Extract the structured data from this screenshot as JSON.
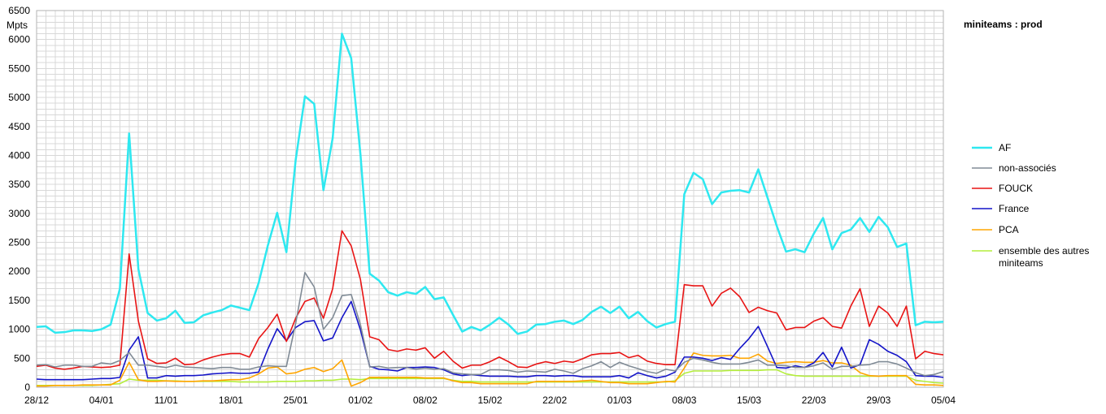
{
  "chart_data": {
    "type": "line",
    "title": "miniteams : prod",
    "ylabel": "Mpts",
    "xlabel": "",
    "ylim": [
      0,
      6500
    ],
    "y_ticks": [
      0,
      500,
      1000,
      1500,
      2000,
      2500,
      3000,
      3500,
      4000,
      4500,
      5000,
      5500,
      6000,
      6500
    ],
    "x_start": "28/12",
    "x_tick_labels": [
      "28/12",
      "04/01",
      "11/01",
      "18/01",
      "25/01",
      "01/02",
      "08/02",
      "15/02",
      "22/02",
      "01/03",
      "08/03",
      "15/03",
      "22/03",
      "29/03",
      "05/04"
    ],
    "grid": true,
    "legend_position": "right",
    "series": [
      {
        "name": "AF",
        "color": "#2ee8f0",
        "values": [
          1040,
          1050,
          940,
          950,
          980,
          980,
          970,
          1000,
          1080,
          1700,
          4380,
          2040,
          1280,
          1150,
          1190,
          1320,
          1110,
          1120,
          1240,
          1290,
          1330,
          1410,
          1370,
          1330,
          1800,
          2450,
          3010,
          2330,
          3920,
          5020,
          4890,
          3400,
          4300,
          6100,
          5680,
          4020,
          1960,
          1840,
          1640,
          1580,
          1640,
          1610,
          1730,
          1520,
          1550,
          1250,
          960,
          1040,
          980,
          1080,
          1200,
          1080,
          920,
          960,
          1080,
          1090,
          1130,
          1150,
          1090,
          1160,
          1300,
          1390,
          1280,
          1390,
          1190,
          1300,
          1140,
          1030,
          1090,
          1130,
          3330,
          3700,
          3590,
          3160,
          3360,
          3390,
          3400,
          3360,
          3760,
          3270,
          2780,
          2340,
          2380,
          2330,
          2650,
          2920,
          2380,
          2660,
          2720,
          2920,
          2680,
          2940,
          2760,
          2420,
          2480,
          1070,
          1130,
          1120,
          1130
        ]
      },
      {
        "name": "non-associés",
        "color": "#808b96",
        "values": [
          380,
          390,
          350,
          380,
          380,
          360,
          360,
          420,
          400,
          460,
          600,
          380,
          380,
          360,
          340,
          380,
          350,
          340,
          330,
          320,
          340,
          340,
          310,
          310,
          350,
          370,
          360,
          360,
          1100,
          1980,
          1730,
          1000,
          1200,
          1580,
          1600,
          1080,
          350,
          360,
          330,
          340,
          340,
          310,
          330,
          310,
          320,
          250,
          230,
          220,
          220,
          300,
          300,
          290,
          260,
          280,
          270,
          260,
          310,
          280,
          240,
          320,
          370,
          440,
          340,
          430,
          370,
          320,
          270,
          240,
          310,
          280,
          430,
          500,
          470,
          430,
          400,
          400,
          400,
          430,
          470,
          380,
          380,
          370,
          340,
          340,
          370,
          420,
          310,
          360,
          360,
          380,
          390,
          440,
          440,
          400,
          330,
          250,
          200,
          220,
          270
        ]
      },
      {
        "name": "FOUCK",
        "color": "#e81414",
        "values": [
          360,
          380,
          330,
          310,
          330,
          360,
          350,
          340,
          350,
          380,
          2300,
          1140,
          490,
          410,
          420,
          500,
          390,
          400,
          470,
          520,
          560,
          580,
          580,
          520,
          840,
          1030,
          1260,
          790,
          1190,
          1480,
          1540,
          1190,
          1700,
          2700,
          2440,
          1860,
          870,
          820,
          650,
          620,
          660,
          640,
          680,
          500,
          620,
          450,
          330,
          380,
          380,
          440,
          520,
          440,
          350,
          340,
          400,
          440,
          410,
          450,
          430,
          490,
          560,
          580,
          580,
          600,
          510,
          550,
          450,
          410,
          390,
          390,
          1770,
          1750,
          1750,
          1400,
          1620,
          1710,
          1560,
          1290,
          1380,
          1320,
          1280,
          990,
          1030,
          1030,
          1140,
          1200,
          1050,
          1020,
          1400,
          1700,
          1050,
          1400,
          1280,
          1050,
          1400,
          490,
          620,
          580,
          560
        ]
      },
      {
        "name": "France",
        "color": "#1414c8",
        "values": [
          140,
          130,
          130,
          130,
          130,
          130,
          140,
          150,
          150,
          170,
          640,
          870,
          160,
          160,
          200,
          190,
          200,
          200,
          210,
          230,
          240,
          250,
          240,
          240,
          260,
          660,
          1010,
          800,
          1030,
          1130,
          1150,
          800,
          850,
          1200,
          1480,
          990,
          360,
          310,
          300,
          280,
          340,
          340,
          350,
          340,
          300,
          230,
          200,
          220,
          200,
          190,
          190,
          190,
          180,
          180,
          200,
          200,
          190,
          200,
          200,
          180,
          180,
          180,
          180,
          200,
          160,
          250,
          200,
          160,
          190,
          260,
          520,
          520,
          500,
          460,
          510,
          480,
          670,
          840,
          1050,
          700,
          340,
          330,
          370,
          340,
          420,
          600,
          350,
          690,
          330,
          390,
          820,
          740,
          620,
          550,
          440,
          200,
          190,
          190,
          170
        ]
      },
      {
        "name": "PCA",
        "color": "#ffa500",
        "values": [
          20,
          20,
          30,
          30,
          30,
          40,
          40,
          40,
          40,
          120,
          430,
          130,
          100,
          100,
          110,
          100,
          100,
          100,
          110,
          110,
          120,
          130,
          130,
          160,
          230,
          330,
          350,
          230,
          250,
          310,
          340,
          270,
          320,
          470,
          20,
          80,
          170,
          170,
          170,
          170,
          170,
          170,
          160,
          160,
          160,
          110,
          80,
          80,
          60,
          60,
          60,
          60,
          60,
          60,
          100,
          100,
          100,
          100,
          100,
          110,
          120,
          100,
          80,
          80,
          60,
          60,
          60,
          80,
          100,
          90,
          330,
          590,
          550,
          540,
          540,
          550,
          500,
          500,
          570,
          450,
          410,
          430,
          440,
          430,
          430,
          460,
          420,
          420,
          380,
          250,
          200,
          190,
          200,
          200,
          200,
          50,
          40,
          40,
          30
        ]
      },
      {
        "name": "ensemble des autres miniteams",
        "color": "#b4ee3c",
        "values": [
          30,
          30,
          30,
          30,
          30,
          30,
          30,
          40,
          50,
          60,
          140,
          120,
          120,
          120,
          110,
          110,
          100,
          100,
          100,
          100,
          100,
          100,
          90,
          90,
          90,
          90,
          100,
          100,
          100,
          110,
          110,
          120,
          120,
          140,
          140,
          130,
          150,
          150,
          150,
          150,
          150,
          150,
          150,
          150,
          150,
          120,
          100,
          100,
          90,
          90,
          90,
          90,
          90,
          90,
          90,
          90,
          90,
          90,
          90,
          90,
          90,
          90,
          90,
          90,
          90,
          90,
          90,
          90,
          90,
          110,
          240,
          280,
          280,
          280,
          280,
          290,
          290,
          290,
          290,
          300,
          300,
          230,
          200,
          190,
          190,
          190,
          190,
          190,
          190,
          190,
          190,
          190,
          190,
          190,
          190,
          120,
          100,
          80,
          70
        ]
      }
    ]
  }
}
